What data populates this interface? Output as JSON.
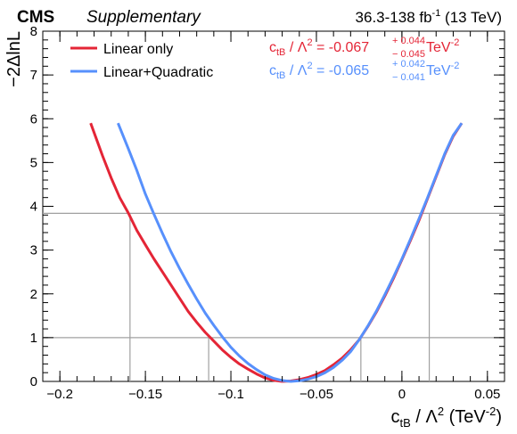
{
  "chart_data": {
    "type": "line",
    "header_left_bold": "CMS",
    "header_left_italic": "Supplementary",
    "header_right": "36.3-138 fb",
    "header_right_sup": "-1",
    "header_right_tail": " (13 TeV)",
    "xlabel_main": "c",
    "xlabel_sub": "tB",
    "xlabel_mid": " / Λ",
    "xlabel_sup2": "2",
    "xlabel_unit": " (TeV",
    "xlabel_unit_sup": "-2",
    "xlabel_close": ")",
    "ylabel": "−2ΔlnL",
    "xlim": [
      -0.21,
      0.06
    ],
    "ylim": [
      0,
      8
    ],
    "xticks": [
      -0.2,
      -0.15,
      -0.1,
      -0.05,
      0,
      0.05
    ],
    "xtick_labels": [
      "−0.2",
      "−0.15",
      "−0.1",
      "−0.05",
      "0",
      "0.05"
    ],
    "yticks": [
      0,
      1,
      2,
      3,
      4,
      5,
      6,
      7,
      8
    ],
    "ytick_labels": [
      "0",
      "1",
      "2",
      "3",
      "4",
      "5",
      "6",
      "7",
      "8"
    ],
    "reference_lines": [
      1.0,
      3.84
    ],
    "crossings": [
      -0.159,
      -0.113,
      -0.024,
      0.016
    ],
    "legend_position": "top-left",
    "colors": {
      "linear": "#e42536",
      "quadratic": "#5790fc",
      "axis": "#000000",
      "ref": "#a0a0a0"
    },
    "series": [
      {
        "name": "Linear only",
        "color": "#e42536",
        "result_prefix": "c",
        "result_sub": "tB",
        "result_mid": " / Λ",
        "result_sup2": "2",
        "result_eq": " = -0.067",
        "result_up": "+ 0.044",
        "result_down": "− 0.045",
        "result_unit": " TeV",
        "result_unit_sup": "-2",
        "x": [
          -0.182,
          -0.175,
          -0.17,
          -0.165,
          -0.16,
          -0.155,
          -0.15,
          -0.145,
          -0.14,
          -0.135,
          -0.13,
          -0.125,
          -0.12,
          -0.115,
          -0.11,
          -0.105,
          -0.1,
          -0.095,
          -0.09,
          -0.085,
          -0.08,
          -0.075,
          -0.07,
          -0.065,
          -0.06,
          -0.055,
          -0.05,
          -0.045,
          -0.04,
          -0.035,
          -0.03,
          -0.025,
          -0.02,
          -0.015,
          -0.01,
          -0.005,
          0,
          0.005,
          0.01,
          0.015,
          0.02,
          0.025,
          0.03,
          0.035
        ],
        "y": [
          5.9,
          5.15,
          4.65,
          4.2,
          3.85,
          3.45,
          3.12,
          2.8,
          2.5,
          2.2,
          1.9,
          1.6,
          1.35,
          1.12,
          0.92,
          0.72,
          0.55,
          0.4,
          0.28,
          0.17,
          0.08,
          0.025,
          0.0,
          0.01,
          0.04,
          0.09,
          0.16,
          0.25,
          0.38,
          0.53,
          0.72,
          0.95,
          1.25,
          1.58,
          1.95,
          2.35,
          2.78,
          3.22,
          3.68,
          4.18,
          4.68,
          5.18,
          5.6,
          5.9
        ]
      },
      {
        "name": "Linear+Quadratic",
        "color": "#5790fc",
        "result_prefix": "c",
        "result_sub": "tB",
        "result_mid": " / Λ",
        "result_sup2": "2",
        "result_eq": " = -0.065",
        "result_up": "+ 0.042",
        "result_down": "− 0.041",
        "result_unit": " TeV",
        "result_unit_sup": "-2",
        "x": [
          -0.166,
          -0.16,
          -0.155,
          -0.15,
          -0.145,
          -0.14,
          -0.135,
          -0.13,
          -0.125,
          -0.12,
          -0.115,
          -0.11,
          -0.105,
          -0.1,
          -0.095,
          -0.09,
          -0.085,
          -0.08,
          -0.075,
          -0.07,
          -0.065,
          -0.06,
          -0.055,
          -0.05,
          -0.045,
          -0.04,
          -0.035,
          -0.03,
          -0.025,
          -0.02,
          -0.015,
          -0.01,
          -0.005,
          0,
          0.005,
          0.01,
          0.015,
          0.02,
          0.025,
          0.03,
          0.035
        ],
        "y": [
          5.9,
          5.32,
          4.82,
          4.28,
          3.82,
          3.38,
          2.96,
          2.58,
          2.22,
          1.88,
          1.56,
          1.28,
          1.02,
          0.78,
          0.58,
          0.41,
          0.27,
          0.15,
          0.07,
          0.02,
          0.0,
          0.015,
          0.05,
          0.11,
          0.2,
          0.32,
          0.48,
          0.68,
          0.95,
          1.26,
          1.6,
          1.98,
          2.38,
          2.8,
          3.25,
          3.72,
          4.2,
          4.7,
          5.2,
          5.62,
          5.9
        ]
      }
    ]
  }
}
